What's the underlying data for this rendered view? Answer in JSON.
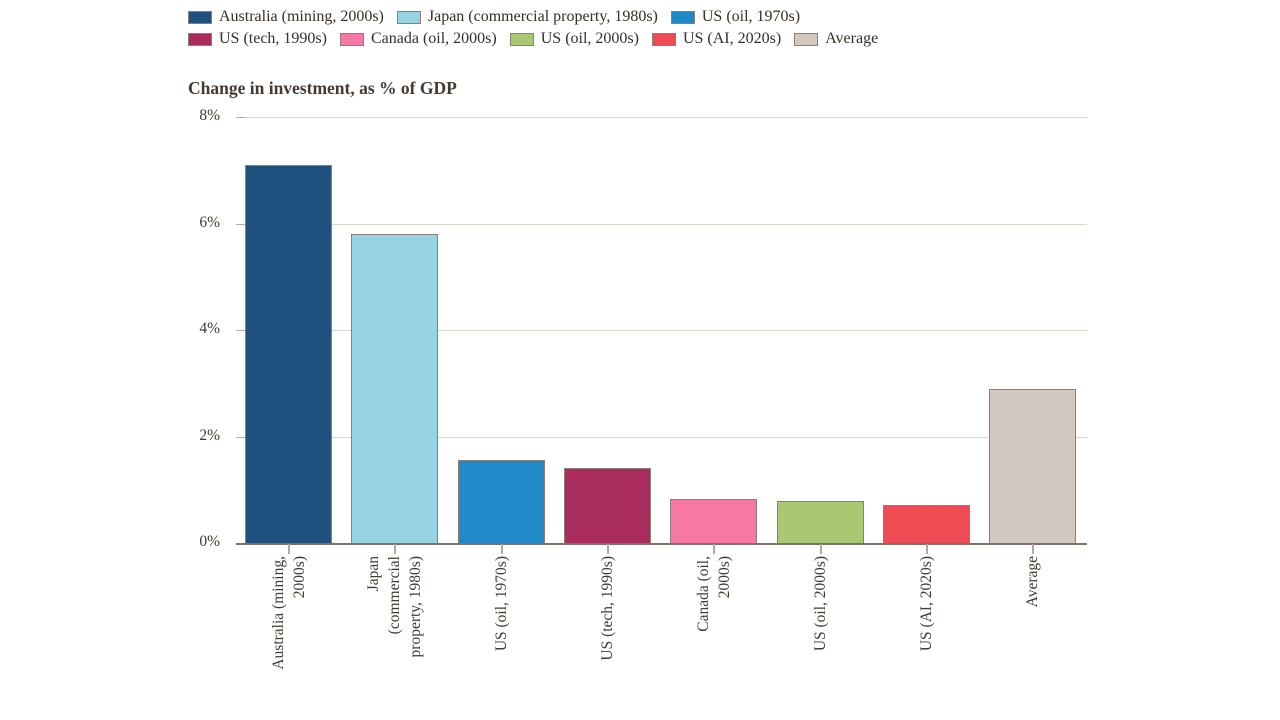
{
  "legend": {
    "items": [
      {
        "label": "Australia (mining, 2000s)",
        "color": "#20517f"
      },
      {
        "label": "Japan (commercial property, 1980s)",
        "color": "#96d3e3"
      },
      {
        "label": "US (oil, 1970s)",
        "color": "#2189c8"
      },
      {
        "label": "US (tech, 1990s)",
        "color": "#aa2c5c"
      },
      {
        "label": "Canada (oil, 2000s)",
        "color": "#f878a5"
      },
      {
        "label": "US (oil, 2000s)",
        "color": "#a9c873"
      },
      {
        "label": "US (AI, 2020s)",
        "color": "#ef4b54"
      },
      {
        "label": "Average",
        "color": "#d3c8bf"
      }
    ]
  },
  "chart_data": {
    "type": "bar",
    "title": "Change in investment, as % of GDP",
    "categories": [
      "Australia (mining, 2000s)",
      "Japan (commercial property, 1980s)",
      "US (oil, 1970s)",
      "US (tech, 1990s)",
      "Canada (oil, 2000s)",
      "US (oil, 2000s)",
      "US (AI, 2020s)",
      "Average"
    ],
    "category_lines": [
      [
        "Australia (mining,",
        "2000s)"
      ],
      [
        "Japan",
        "(commercial",
        "property, 1980s)"
      ],
      [
        "US (oil, 1970s)"
      ],
      [
        "US (tech, 1990s)"
      ],
      [
        "Canada (oil,",
        "2000s)"
      ],
      [
        "US (oil, 2000s)"
      ],
      [
        "US (AI, 2020s)"
      ],
      [
        "Average"
      ]
    ],
    "values": [
      7.1,
      5.8,
      1.55,
      1.4,
      0.83,
      0.79,
      0.71,
      2.9
    ],
    "bar_colors": [
      "#20517f",
      "#96d3e3",
      "#2189c8",
      "#aa2c5c",
      "#f878a5",
      "#a9c873",
      "#ef4b54",
      "#d3c8bf"
    ],
    "y_ticks": [
      "0%",
      "2%",
      "4%",
      "6%",
      "8%"
    ],
    "y_tick_values": [
      0,
      2,
      4,
      6,
      8
    ],
    "ylim": [
      0,
      8
    ],
    "xlabel": "",
    "ylabel": "",
    "grid": true,
    "legend_position": "top",
    "bar_border_color": "#8a8078",
    "grid_color": "#dbd4c9",
    "axis_color": "#7b7269",
    "tick_color": "#b3a99e",
    "text_color": "#433a30"
  }
}
